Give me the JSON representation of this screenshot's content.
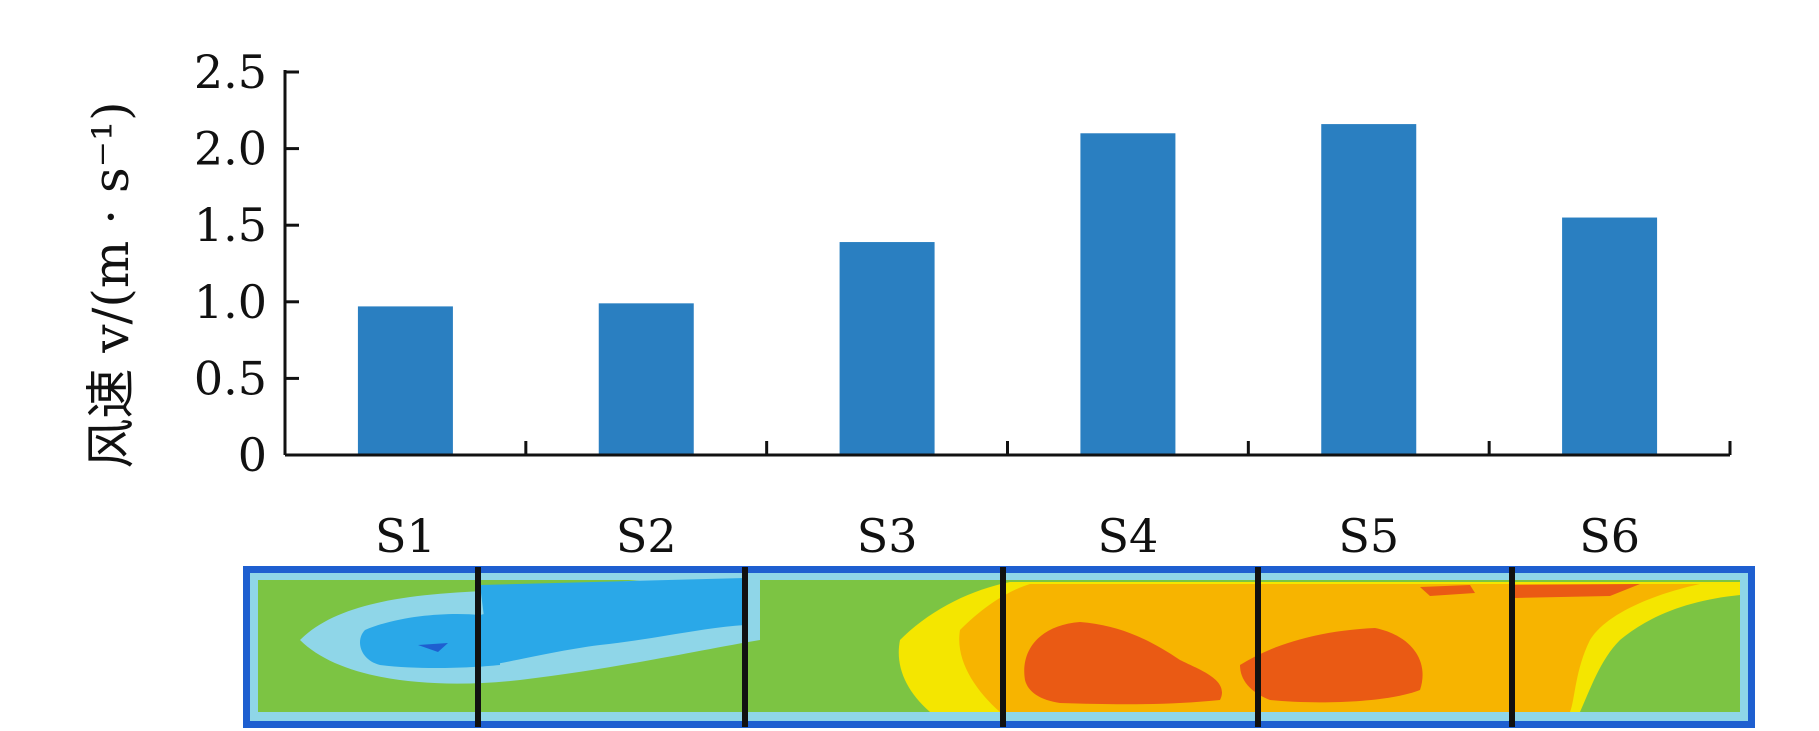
{
  "chart_data": {
    "type": "bar",
    "categories": [
      "S1",
      "S2",
      "S3",
      "S4",
      "S5",
      "S6"
    ],
    "values": [
      0.97,
      0.99,
      1.39,
      2.1,
      2.16,
      1.55
    ],
    "ylabel": "风速 v/(m · s⁻¹)",
    "yticks": [
      "0",
      "0.5",
      "1.0",
      "1.5",
      "2.0",
      "2.5"
    ],
    "ylim": [
      0,
      2.5
    ],
    "grid": false,
    "bar_color": "#2a7fc1"
  },
  "contour_strip": {
    "colors": {
      "border": "#1e5fd0",
      "cool": "#2aa8e8",
      "light_blue": "#8fd6e8",
      "green": "#7cc443",
      "yellow": "#f4e600",
      "orange": "#f7b400",
      "red": "#ea5a14"
    }
  }
}
